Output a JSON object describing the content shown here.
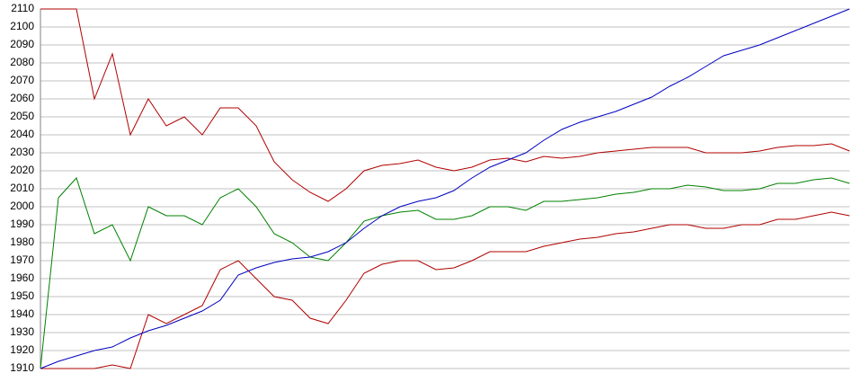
{
  "chart_data": {
    "type": "line",
    "ylim": [
      1910,
      2110
    ],
    "yticks": [
      1910,
      1920,
      1930,
      1940,
      1950,
      1960,
      1970,
      1980,
      1990,
      2000,
      2010,
      2020,
      2030,
      2040,
      2050,
      2060,
      2070,
      2080,
      2090,
      2100,
      2110
    ],
    "grid": true,
    "series": [
      {
        "color": "#b00000",
        "values": [
          2110,
          2110,
          2110,
          2060,
          2085,
          2040,
          2060,
          2045,
          2050,
          2040,
          2055,
          2055,
          2045,
          2025,
          2015,
          2008,
          2003,
          2010,
          2020,
          2023,
          2024,
          2026,
          2022,
          2020,
          2022,
          2026,
          2027,
          2025,
          2028,
          2027,
          2028,
          2030,
          2031,
          2032,
          2033,
          2033,
          2033,
          2030,
          2030,
          2030,
          2031,
          2033,
          2034,
          2034,
          2035,
          2031
        ]
      },
      {
        "color": "#008000",
        "values": [
          1910,
          2005,
          2016,
          1985,
          1990,
          1970,
          2000,
          1995,
          1995,
          1990,
          2005,
          2010,
          2000,
          1985,
          1980,
          1972,
          1970,
          1980,
          1992,
          1995,
          1997,
          1998,
          1993,
          1993,
          1995,
          2000,
          2000,
          1998,
          2003,
          2003,
          2004,
          2005,
          2007,
          2008,
          2010,
          2010,
          2012,
          2011,
          2009,
          2009,
          2010,
          2013,
          2013,
          2015,
          2016,
          2013
        ]
      },
      {
        "color": "#b00000",
        "values": [
          1910,
          1910,
          1910,
          1910,
          1912,
          1910,
          1940,
          1935,
          1940,
          1945,
          1965,
          1970,
          1960,
          1950,
          1948,
          1938,
          1935,
          1948,
          1963,
          1968,
          1970,
          1970,
          1965,
          1966,
          1970,
          1975,
          1975,
          1975,
          1978,
          1980,
          1982,
          1983,
          1985,
          1986,
          1988,
          1990,
          1990,
          1988,
          1988,
          1990,
          1990,
          1993,
          1993,
          1995,
          1997,
          1995
        ]
      },
      {
        "color": "#0000c0",
        "values": [
          1910,
          1914,
          1917,
          1920,
          1922,
          1927,
          1931,
          1934,
          1938,
          1942,
          1948,
          1962,
          1966,
          1969,
          1971,
          1972,
          1975,
          1980,
          1988,
          1995,
          2000,
          2003,
          2005,
          2009,
          2016,
          2022,
          2026,
          2030,
          2037,
          2043,
          2047,
          2050,
          2053,
          2057,
          2061,
          2067,
          2072,
          2078,
          2084,
          2087,
          2090,
          2094,
          2098,
          2102,
          2106,
          2110
        ]
      }
    ]
  }
}
